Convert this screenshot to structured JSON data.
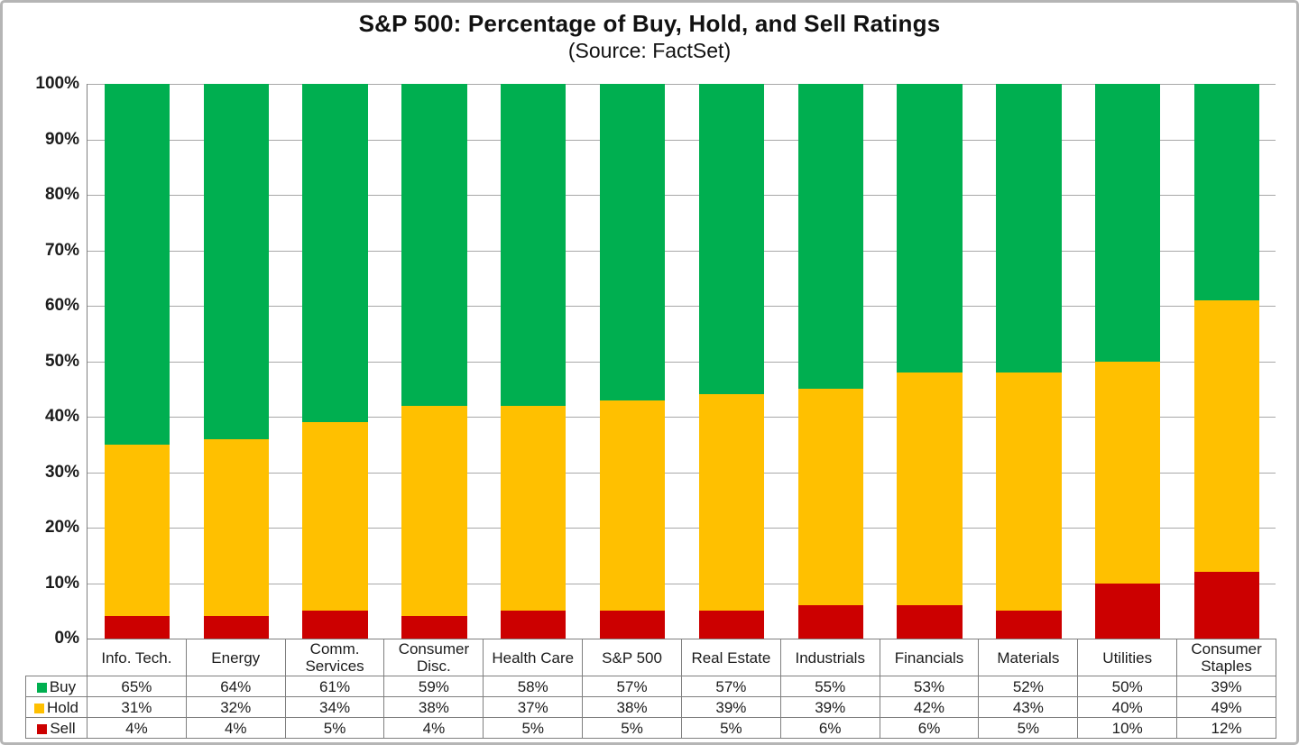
{
  "chart_data": {
    "type": "bar",
    "stacked": true,
    "title": "S&P 500: Percentage of Buy, Hold, and Sell Ratings",
    "subtitle": "(Source: FactSet)",
    "categories": [
      "Info. Tech.",
      "Energy",
      "Comm. Services",
      "Consumer Disc.",
      "Health Care",
      "S&P 500",
      "Real Estate",
      "Industrials",
      "Financials",
      "Materials",
      "Utilities",
      "Consumer Staples"
    ],
    "series": [
      {
        "name": "Buy",
        "color": "#00AF50",
        "values": [
          65,
          64,
          61,
          59,
          58,
          57,
          57,
          55,
          53,
          52,
          50,
          39
        ]
      },
      {
        "name": "Hold",
        "color": "#FFC000",
        "values": [
          31,
          32,
          34,
          38,
          37,
          38,
          39,
          39,
          42,
          43,
          40,
          49
        ]
      },
      {
        "name": "Sell",
        "color": "#CC0000",
        "values": [
          4,
          4,
          5,
          4,
          5,
          5,
          5,
          6,
          6,
          5,
          10,
          12
        ]
      }
    ],
    "value_suffix": "%",
    "y_ticks": [
      "100%",
      "90%",
      "80%",
      "70%",
      "60%",
      "50%",
      "40%",
      "30%",
      "20%",
      "10%",
      "0%"
    ],
    "ylim": [
      0,
      100
    ],
    "grid": true,
    "legend_position": "table-left",
    "legend_labels": [
      "Buy",
      "Hold",
      "Sell"
    ]
  },
  "colors": {
    "buy": "#00AF50",
    "hold": "#FFC000",
    "sell": "#CC0000",
    "gridline": "#A8A8A8",
    "axis": "#7F7F7F",
    "table_border": "#7F7F7F",
    "frame_border": "#B5B5B5",
    "text": "#111111"
  }
}
